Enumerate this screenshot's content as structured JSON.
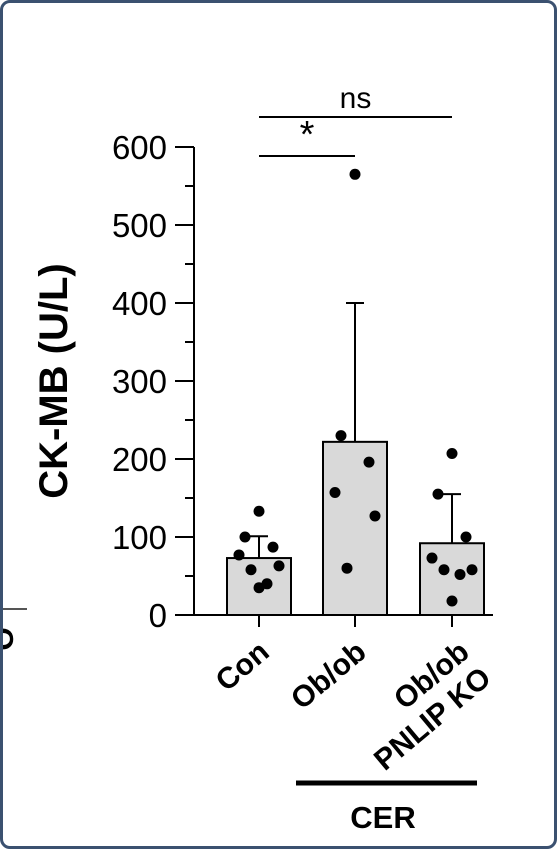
{
  "chart_data": {
    "type": "bar",
    "ylabel": "CK-MB (U/L)",
    "ylim": [
      0,
      600
    ],
    "yticks": [
      0,
      100,
      200,
      300,
      400,
      500,
      600
    ],
    "categories": [
      "Con",
      "Ob/ob",
      "Ob/ob PNLIP KO"
    ],
    "category_lines": [
      [
        "Con"
      ],
      [
        "Ob/ob"
      ],
      [
        "Ob/ob",
        "PNLIP KO"
      ]
    ],
    "group_label": "CER",
    "means": [
      73,
      222,
      92
    ],
    "errors": [
      28,
      178,
      63
    ],
    "points": [
      [
        133,
        100,
        87,
        77,
        63,
        58,
        40,
        35
      ],
      [
        565,
        230,
        196,
        157,
        127,
        60
      ],
      [
        207,
        155,
        100,
        73,
        58,
        58,
        52,
        18
      ]
    ],
    "significance": [
      {
        "from": 0,
        "to": 1,
        "label": "*"
      },
      {
        "from": 0,
        "to": 2,
        "label": "ns"
      }
    ],
    "colors": {
      "bar_fill": "#d9d9d9",
      "frame": "#3b5170",
      "ink": "#000000"
    },
    "grid": false,
    "legend": "none"
  }
}
